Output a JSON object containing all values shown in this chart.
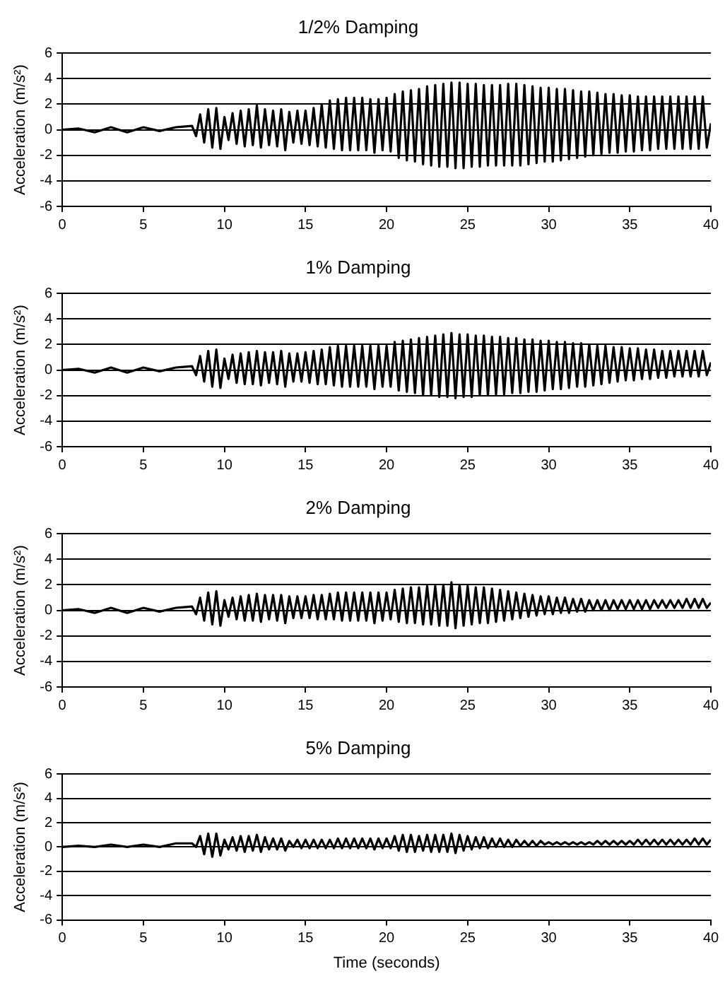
{
  "chart_data": [
    {
      "type": "line",
      "title": "1/2% Damping",
      "ylabel": "Acceleration (m/s²)",
      "ylim": [
        -6,
        6
      ],
      "yticks": [
        -6,
        -4,
        -2,
        0,
        2,
        4,
        6
      ],
      "xlim": [
        0,
        40
      ],
      "xticks": [
        0,
        5,
        10,
        15,
        20,
        25,
        30,
        35,
        40
      ],
      "grid": "y",
      "x": [
        0,
        1,
        2,
        3,
        4,
        5,
        6,
        7,
        8,
        8.25,
        8.5,
        8.75,
        9,
        9.25,
        9.5,
        9.75,
        10,
        10.25,
        10.5,
        10.75,
        11,
        11.25,
        11.5,
        11.75,
        12,
        12.25,
        12.5,
        12.75,
        13,
        13.25,
        13.5,
        13.75,
        14,
        14.25,
        14.5,
        14.75,
        15,
        15.25,
        15.5,
        15.75,
        16,
        16.25,
        16.5,
        16.75,
        17,
        17.25,
        17.5,
        17.75,
        18,
        18.25,
        18.5,
        18.75,
        19,
        19.25,
        19.5,
        19.75,
        20,
        20.25,
        20.5,
        20.75,
        21,
        21.25,
        21.5,
        21.75,
        22,
        22.25,
        22.5,
        22.75,
        23,
        23.25,
        23.5,
        23.75,
        24,
        24.25,
        24.5,
        24.75,
        25,
        25.25,
        25.5,
        25.75,
        26,
        26.25,
        26.5,
        26.75,
        27,
        27.25,
        27.5,
        27.75,
        28,
        28.25,
        28.5,
        28.75,
        29,
        29.25,
        29.5,
        29.75,
        30,
        30.25,
        30.5,
        30.75,
        31,
        31.25,
        31.5,
        31.75,
        32,
        32.25,
        32.5,
        32.75,
        33,
        33.25,
        33.5,
        33.75,
        34,
        34.25,
        34.5,
        34.75,
        35,
        35.25,
        35.5,
        35.75,
        36,
        36.25,
        36.5,
        36.75,
        37,
        37.25,
        37.5,
        37.75,
        38,
        38.25,
        38.5,
        38.75,
        39,
        39.25,
        39.5,
        39.75,
        40
      ],
      "series": [
        {
          "color": "#000000",
          "values": [
            0,
            0.1,
            -0.2,
            0.2,
            -0.2,
            0.2,
            -0.1,
            0.2,
            0.3,
            -0.5,
            1.2,
            -1.0,
            1.6,
            -1.4,
            1.7,
            -1.5,
            1.0,
            -0.8,
            1.3,
            -1.1,
            1.5,
            -1.3,
            1.6,
            -1.2,
            1.9,
            -1.4,
            1.6,
            -1.2,
            1.5,
            -1.3,
            1.6,
            -1.6,
            1.4,
            -1.0,
            1.5,
            -1.1,
            1.5,
            -1.2,
            1.7,
            -1.3,
            2.0,
            -1.4,
            2.3,
            -1.5,
            2.4,
            -1.6,
            2.5,
            -1.6,
            2.5,
            -1.6,
            2.5,
            -1.6,
            2.4,
            -1.8,
            2.4,
            -1.6,
            2.5,
            -1.7,
            2.8,
            -2.2,
            3.0,
            -2.4,
            3.1,
            -2.5,
            3.2,
            -2.7,
            3.4,
            -2.8,
            3.5,
            -2.9,
            3.6,
            -2.9,
            3.7,
            -3.0,
            3.7,
            -3.0,
            3.6,
            -2.9,
            3.6,
            -2.9,
            3.5,
            -2.8,
            3.5,
            -2.8,
            3.5,
            -2.8,
            3.6,
            -2.8,
            3.6,
            -2.8,
            3.5,
            -2.7,
            3.4,
            -2.6,
            3.3,
            -2.5,
            3.3,
            -2.5,
            3.2,
            -2.4,
            3.2,
            -2.3,
            3.1,
            -2.2,
            3.0,
            -2.1,
            3.0,
            -2.0,
            2.9,
            -1.9,
            2.8,
            -1.8,
            2.8,
            -1.8,
            2.7,
            -1.7,
            2.7,
            -1.7,
            2.6,
            -1.6,
            2.6,
            -1.6,
            2.6,
            -1.5,
            2.6,
            -1.5,
            2.6,
            -1.5,
            2.6,
            -1.5,
            2.6,
            -1.5,
            2.6,
            -1.5,
            2.6,
            -1.4,
            0.5
          ]
        }
      ]
    },
    {
      "type": "line",
      "title": "1% Damping",
      "ylabel": "Acceleration (m/s²)",
      "ylim": [
        -6,
        6
      ],
      "yticks": [
        -6,
        -4,
        -2,
        0,
        2,
        4,
        6
      ],
      "xlim": [
        0,
        40
      ],
      "xticks": [
        0,
        5,
        10,
        15,
        20,
        25,
        30,
        35,
        40
      ],
      "grid": "y",
      "x": [
        0,
        1,
        2,
        3,
        4,
        5,
        6,
        7,
        8,
        8.25,
        8.5,
        8.75,
        9,
        9.25,
        9.5,
        9.75,
        10,
        10.25,
        10.5,
        10.75,
        11,
        11.25,
        11.5,
        11.75,
        12,
        12.25,
        12.5,
        12.75,
        13,
        13.25,
        13.5,
        13.75,
        14,
        14.25,
        14.5,
        14.75,
        15,
        15.25,
        15.5,
        15.75,
        16,
        16.25,
        16.5,
        16.75,
        17,
        17.25,
        17.5,
        17.75,
        18,
        18.25,
        18.5,
        18.75,
        19,
        19.25,
        19.5,
        19.75,
        20,
        20.25,
        20.5,
        20.75,
        21,
        21.25,
        21.5,
        21.75,
        22,
        22.25,
        22.5,
        22.75,
        23,
        23.25,
        23.5,
        23.75,
        24,
        24.25,
        24.5,
        24.75,
        25,
        25.25,
        25.5,
        25.75,
        26,
        26.25,
        26.5,
        26.75,
        27,
        27.25,
        27.5,
        27.75,
        28,
        28.25,
        28.5,
        28.75,
        29,
        29.25,
        29.5,
        29.75,
        30,
        30.25,
        30.5,
        30.75,
        31,
        31.25,
        31.5,
        31.75,
        32,
        32.25,
        32.5,
        32.75,
        33,
        33.25,
        33.5,
        33.75,
        34,
        34.25,
        34.5,
        34.75,
        35,
        35.25,
        35.5,
        35.75,
        36,
        36.25,
        36.5,
        36.75,
        37,
        37.25,
        37.5,
        37.75,
        38,
        38.25,
        38.5,
        38.75,
        39,
        39.25,
        39.5,
        39.75,
        40
      ],
      "series": [
        {
          "color": "#000000",
          "values": [
            0,
            0.1,
            -0.2,
            0.2,
            -0.2,
            0.2,
            -0.1,
            0.2,
            0.3,
            -0.4,
            1.1,
            -0.9,
            1.5,
            -1.3,
            1.6,
            -1.4,
            0.9,
            -0.7,
            1.2,
            -1.0,
            1.3,
            -1.1,
            1.4,
            -1.1,
            1.5,
            -1.2,
            1.4,
            -1.0,
            1.4,
            -1.1,
            1.5,
            -1.3,
            1.3,
            -0.9,
            1.3,
            -0.9,
            1.4,
            -1.0,
            1.5,
            -1.1,
            1.6,
            -1.1,
            1.8,
            -1.2,
            1.9,
            -1.3,
            1.9,
            -1.3,
            1.9,
            -1.3,
            1.9,
            -1.3,
            1.9,
            -1.5,
            1.9,
            -1.3,
            1.9,
            -1.3,
            2.2,
            -1.6,
            2.3,
            -1.7,
            2.4,
            -1.8,
            2.5,
            -2.0,
            2.6,
            -2.0,
            2.7,
            -2.1,
            2.8,
            -2.1,
            2.9,
            -2.2,
            2.8,
            -2.1,
            2.8,
            -2.1,
            2.7,
            -2.0,
            2.7,
            -2.0,
            2.6,
            -1.9,
            2.6,
            -1.9,
            2.5,
            -1.8,
            2.5,
            -1.8,
            2.4,
            -1.7,
            2.4,
            -1.7,
            2.3,
            -1.6,
            2.3,
            -1.5,
            2.2,
            -1.5,
            2.2,
            -1.4,
            2.1,
            -1.3,
            2.1,
            -1.3,
            2.0,
            -1.2,
            1.9,
            -1.1,
            1.9,
            -1.0,
            1.8,
            -0.9,
            1.8,
            -0.8,
            1.7,
            -0.8,
            1.7,
            -0.7,
            1.6,
            -0.7,
            1.6,
            -0.6,
            1.5,
            -0.6,
            1.5,
            -0.5,
            1.5,
            -0.5,
            1.5,
            -0.5,
            1.5,
            -0.5,
            1.5,
            -0.4,
            0.6
          ]
        }
      ]
    },
    {
      "type": "line",
      "title": "2% Damping",
      "ylabel": "Acceleration (m/s²)",
      "ylim": [
        -6,
        6
      ],
      "yticks": [
        -6,
        -4,
        -2,
        0,
        2,
        4,
        6
      ],
      "xlim": [
        0,
        40
      ],
      "xticks": [
        0,
        5,
        10,
        15,
        20,
        25,
        30,
        35,
        40
      ],
      "grid": "y",
      "x": [
        0,
        1,
        2,
        3,
        4,
        5,
        6,
        7,
        8,
        8.25,
        8.5,
        8.75,
        9,
        9.25,
        9.5,
        9.75,
        10,
        10.25,
        10.5,
        10.75,
        11,
        11.25,
        11.5,
        11.75,
        12,
        12.25,
        12.5,
        12.75,
        13,
        13.25,
        13.5,
        13.75,
        14,
        14.25,
        14.5,
        14.75,
        15,
        15.25,
        15.5,
        15.75,
        16,
        16.25,
        16.5,
        16.75,
        17,
        17.25,
        17.5,
        17.75,
        18,
        18.25,
        18.5,
        18.75,
        19,
        19.25,
        19.5,
        19.75,
        20,
        20.25,
        20.5,
        20.75,
        21,
        21.25,
        21.5,
        21.75,
        22,
        22.25,
        22.5,
        22.75,
        23,
        23.25,
        23.5,
        23.75,
        24,
        24.25,
        24.5,
        24.75,
        25,
        25.25,
        25.5,
        25.75,
        26,
        26.25,
        26.5,
        26.75,
        27,
        27.25,
        27.5,
        27.75,
        28,
        28.25,
        28.5,
        28.75,
        29,
        29.25,
        29.5,
        29.75,
        30,
        30.25,
        30.5,
        30.75,
        31,
        31.25,
        31.5,
        31.75,
        32,
        32.25,
        32.5,
        32.75,
        33,
        33.25,
        33.5,
        33.75,
        34,
        34.25,
        34.5,
        34.75,
        35,
        35.25,
        35.5,
        35.75,
        36,
        36.25,
        36.5,
        36.75,
        37,
        37.25,
        37.5,
        37.75,
        38,
        38.25,
        38.5,
        38.75,
        39,
        39.25,
        39.5,
        39.75,
        40
      ],
      "series": [
        {
          "color": "#000000",
          "values": [
            0,
            0.1,
            -0.2,
            0.2,
            -0.2,
            0.2,
            -0.1,
            0.2,
            0.3,
            -0.3,
            1.0,
            -0.8,
            1.4,
            -1.1,
            1.5,
            -1.2,
            0.8,
            -0.5,
            1.0,
            -0.7,
            1.1,
            -0.8,
            1.2,
            -0.8,
            1.3,
            -0.9,
            1.2,
            -0.7,
            1.2,
            -0.8,
            1.2,
            -1.0,
            1.1,
            -0.6,
            1.1,
            -0.6,
            1.1,
            -0.6,
            1.2,
            -0.7,
            1.2,
            -0.7,
            1.3,
            -0.7,
            1.4,
            -0.8,
            1.4,
            -0.8,
            1.4,
            -0.8,
            1.4,
            -0.8,
            1.4,
            -1.0,
            1.4,
            -0.8,
            1.4,
            -0.7,
            1.6,
            -0.9,
            1.7,
            -1.0,
            1.8,
            -1.0,
            1.8,
            -1.1,
            1.9,
            -1.1,
            1.9,
            -1.2,
            2.0,
            -1.2,
            2.2,
            -1.4,
            2.0,
            -1.2,
            1.9,
            -1.1,
            1.8,
            -1.0,
            1.8,
            -1.0,
            1.7,
            -0.9,
            1.6,
            -0.8,
            1.5,
            -0.7,
            1.4,
            -0.6,
            1.3,
            -0.5,
            1.2,
            -0.4,
            1.1,
            -0.3,
            1.1,
            -0.3,
            1.0,
            -0.2,
            1.0,
            -0.2,
            0.9,
            -0.1,
            0.9,
            -0.1,
            0.8,
            0.0,
            0.8,
            0.0,
            0.8,
            0.0,
            0.8,
            0.1,
            0.8,
            0.1,
            0.8,
            0.1,
            0.8,
            0.1,
            0.8,
            0.1,
            0.8,
            0.2,
            0.8,
            0.2,
            0.8,
            0.2,
            0.8,
            0.2,
            0.9,
            0.2,
            0.9,
            0.2,
            0.9,
            0.2,
            0.6
          ]
        }
      ]
    },
    {
      "type": "line",
      "title": "5% Damping",
      "ylabel": "Acceleration (m/s²)",
      "xlabel": "Time (seconds)",
      "ylim": [
        -6,
        6
      ],
      "yticks": [
        -6,
        -4,
        -2,
        0,
        2,
        4,
        6
      ],
      "xlim": [
        0,
        40
      ],
      "xticks": [
        0,
        5,
        10,
        15,
        20,
        25,
        30,
        35,
        40
      ],
      "grid": "y",
      "x": [
        0,
        1,
        2,
        3,
        4,
        5,
        6,
        7,
        8,
        8.25,
        8.5,
        8.75,
        9,
        9.25,
        9.5,
        9.75,
        10,
        10.25,
        10.5,
        10.75,
        11,
        11.25,
        11.5,
        11.75,
        12,
        12.25,
        12.5,
        12.75,
        13,
        13.25,
        13.5,
        13.75,
        14,
        14.25,
        14.5,
        14.75,
        15,
        15.25,
        15.5,
        15.75,
        16,
        16.25,
        16.5,
        16.75,
        17,
        17.25,
        17.5,
        17.75,
        18,
        18.25,
        18.5,
        18.75,
        19,
        19.25,
        19.5,
        19.75,
        20,
        20.25,
        20.5,
        20.75,
        21,
        21.25,
        21.5,
        21.75,
        22,
        22.25,
        22.5,
        22.75,
        23,
        23.25,
        23.5,
        23.75,
        24,
        24.25,
        24.5,
        24.75,
        25,
        25.25,
        25.5,
        25.75,
        26,
        26.25,
        26.5,
        26.75,
        27,
        27.25,
        27.5,
        27.75,
        28,
        28.25,
        28.5,
        28.75,
        29,
        29.25,
        29.5,
        29.75,
        30,
        30.25,
        30.5,
        30.75,
        31,
        31.25,
        31.5,
        31.75,
        32,
        32.25,
        32.5,
        32.75,
        33,
        33.25,
        33.5,
        33.75,
        34,
        34.25,
        34.5,
        34.75,
        35,
        35.25,
        35.5,
        35.75,
        36,
        36.25,
        36.5,
        36.75,
        37,
        37.25,
        37.5,
        37.75,
        38,
        38.25,
        38.5,
        38.75,
        39,
        39.25,
        39.5,
        39.75,
        40
      ],
      "series": [
        {
          "color": "#000000",
          "values": [
            0,
            0.1,
            0,
            0.2,
            0,
            0.2,
            0,
            0.3,
            0.3,
            0.0,
            0.9,
            -0.6,
            1.1,
            -0.8,
            1.1,
            -0.7,
            0.6,
            -0.2,
            0.8,
            -0.3,
            0.9,
            -0.4,
            0.9,
            -0.3,
            1.0,
            -0.4,
            0.8,
            -0.2,
            0.7,
            -0.2,
            0.7,
            -0.3,
            0.5,
            0.0,
            0.6,
            -0.1,
            0.6,
            -0.1,
            0.6,
            -0.1,
            0.6,
            -0.1,
            0.6,
            -0.1,
            0.7,
            -0.1,
            0.7,
            -0.1,
            0.7,
            -0.1,
            0.7,
            -0.1,
            0.7,
            -0.2,
            0.7,
            -0.1,
            0.7,
            -0.1,
            0.9,
            -0.3,
            1.0,
            -0.4,
            1.0,
            -0.4,
            0.9,
            -0.3,
            1.0,
            -0.4,
            1.0,
            -0.4,
            1.0,
            -0.4,
            1.1,
            -0.5,
            1.0,
            -0.3,
            0.9,
            -0.2,
            0.8,
            -0.1,
            0.8,
            -0.1,
            0.7,
            0.0,
            0.7,
            0.0,
            0.6,
            0.0,
            0.6,
            0.1,
            0.5,
            0.1,
            0.5,
            0.1,
            0.5,
            0.2,
            0.4,
            0.2,
            0.4,
            0.2,
            0.4,
            0.2,
            0.4,
            0.2,
            0.4,
            0.2,
            0.4,
            0.2,
            0.5,
            0.2,
            0.5,
            0.2,
            0.5,
            0.2,
            0.5,
            0.2,
            0.5,
            0.2,
            0.6,
            0.2,
            0.6,
            0.2,
            0.6,
            0.2,
            0.6,
            0.2,
            0.6,
            0.2,
            0.6,
            0.2,
            0.6,
            0.2,
            0.7,
            0.2,
            0.7,
            0.2,
            0.6
          ]
        }
      ]
    }
  ]
}
